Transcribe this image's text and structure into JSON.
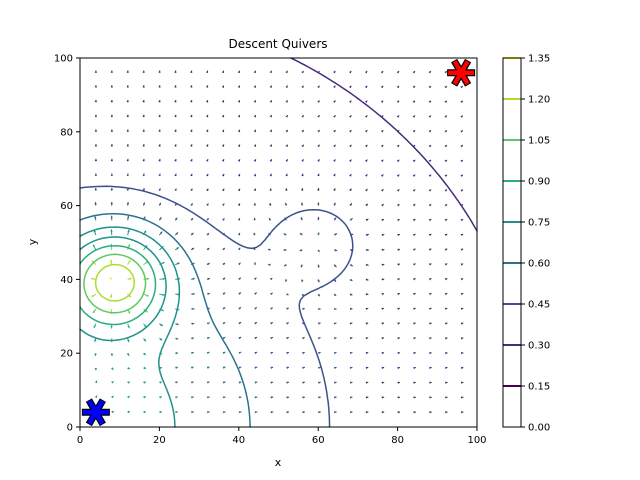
{
  "chart_data": {
    "type": "contour",
    "title": "Descent Quivers",
    "xlabel": "x",
    "ylabel": "y",
    "xlim": [
      0,
      100
    ],
    "ylim": [
      0,
      100
    ],
    "x_ticks": [
      0,
      20,
      40,
      60,
      80,
      100
    ],
    "y_ticks": [
      0,
      20,
      40,
      60,
      80,
      100
    ],
    "colorbar": {
      "ticks": [
        "0.00",
        "0.15",
        "0.30",
        "0.45",
        "0.60",
        "0.75",
        "0.90",
        "1.05",
        "1.20",
        "1.35"
      ],
      "colors": [
        "#440154",
        "#472d7b",
        "#3b528b",
        "#2c728e",
        "#21918c",
        "#28ae80",
        "#5ec962",
        "#addc30",
        "#fde725"
      ],
      "range": [
        0,
        1.35
      ]
    },
    "contour_levels": [
      0.15,
      0.3,
      0.45,
      0.6,
      0.75,
      0.9,
      1.05,
      1.2
    ],
    "features": {
      "peak": {
        "x": 9,
        "y": 40,
        "value": 1.2
      },
      "basin": {
        "x": 60,
        "y": 50,
        "value": 0.45
      },
      "start_marker": {
        "x": 4,
        "y": 4,
        "color": "#0000ff",
        "symbol": "asterisk"
      },
      "goal_marker": {
        "x": 96,
        "y": 96,
        "color": "#ff0000",
        "symbol": "asterisk"
      }
    }
  }
}
